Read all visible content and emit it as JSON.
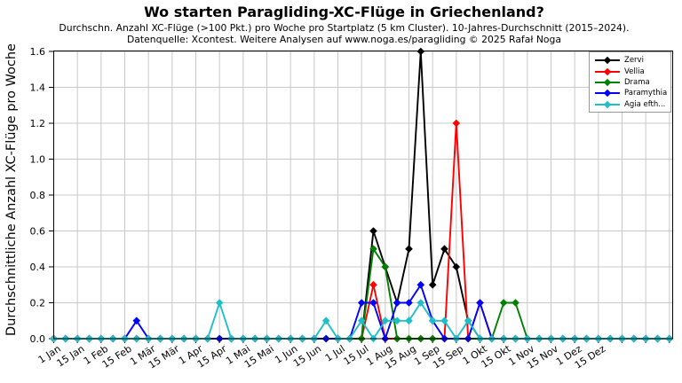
{
  "header": {
    "title": "Wo starten Paragliding-XC-Flüge in Griechenland?",
    "subtitle_line1": "Durchschn. Anzahl XC-Flüge (>100 Pkt.) pro Woche pro Startplatz (5 km Cluster). 10-Jahres-Durchschnitt (2015–2024).",
    "subtitle_line2": "Datenquelle: Xcontest. Weitere Analysen auf www.noga.es/paragliding © 2025 Rafał Noga"
  },
  "chart_data": {
    "type": "line",
    "title": "Wo starten Paragliding-XC-Flüge in Griechenland?",
    "xlabel": "",
    "ylabel": "Durchschnittliche Anzahl XC-Flüge pro Woche",
    "x_unit": "week_of_year",
    "weeks": 53,
    "ylim": [
      0,
      1.6
    ],
    "ytick_step": 0.2,
    "ytick_labels": [
      "0.0",
      "0.2",
      "0.4",
      "0.6",
      "0.8",
      "1.0",
      "1.2",
      "1.4",
      "1.6"
    ],
    "xtick_every_n_weeks": 2,
    "xtick_labels": [
      "1 Jan",
      "15 Jan",
      "1 Feb",
      "15 Feb",
      "1 Mär",
      "15 Mär",
      "1 Apr",
      "15 Apr",
      "1 Mai",
      "15 Mai",
      "1 Jun",
      "15 Jun",
      "1 Jul",
      "15 Jul",
      "1 Aug",
      "15 Aug",
      "1 Sep",
      "15 Sep",
      "1 Okt",
      "15 Okt",
      "1 Nov",
      "15 Nov",
      "1 Dez",
      "15 Dez"
    ],
    "grid": true,
    "legend_position": "top-right",
    "marker": "diamond",
    "series": [
      {
        "name": "Zervi",
        "color": "#000000",
        "values": [
          0,
          0,
          0,
          0,
          0,
          0,
          0,
          0,
          0,
          0,
          0,
          0,
          0,
          0,
          0,
          0,
          0,
          0,
          0,
          0,
          0,
          0,
          0,
          0,
          0,
          0,
          0,
          0.6,
          0.4,
          0.2,
          0.5,
          1.6,
          0.3,
          0.5,
          0.4,
          0.1,
          0,
          0,
          0,
          0,
          0,
          0,
          0,
          0,
          0,
          0,
          0,
          0,
          0,
          0,
          0,
          0,
          0
        ]
      },
      {
        "name": "Vellia",
        "color": "#ff0000",
        "values": [
          0,
          0,
          0,
          0,
          0,
          0,
          0,
          0,
          0,
          0,
          0,
          0,
          0,
          0,
          0,
          0,
          0,
          0,
          0,
          0,
          0,
          0,
          0,
          0,
          0,
          0,
          0,
          0.3,
          0,
          0,
          0,
          0,
          0,
          0,
          1.2,
          0,
          0.2,
          0,
          0,
          0,
          0,
          0,
          0,
          0,
          0,
          0,
          0,
          0,
          0,
          0,
          0,
          0,
          0
        ]
      },
      {
        "name": "Drama",
        "color": "#008000",
        "values": [
          0,
          0,
          0,
          0,
          0,
          0,
          0,
          0,
          0,
          0,
          0,
          0,
          0,
          0,
          0,
          0,
          0,
          0,
          0,
          0,
          0,
          0,
          0,
          0,
          0,
          0,
          0,
          0.5,
          0.4,
          0,
          0,
          0,
          0,
          0,
          0,
          0,
          0,
          0,
          0.2,
          0.2,
          0,
          0,
          0,
          0,
          0,
          0,
          0,
          0,
          0,
          0,
          0,
          0,
          0
        ]
      },
      {
        "name": "Paramythia",
        "color": "#0000ff",
        "values": [
          0,
          0,
          0,
          0,
          0,
          0,
          0,
          0.1,
          0,
          0,
          0,
          0,
          0,
          0,
          0,
          0,
          0,
          0,
          0,
          0,
          0,
          0,
          0,
          0,
          0,
          0,
          0.2,
          0.2,
          0,
          0.2,
          0.2,
          0.3,
          0.1,
          0,
          0,
          0,
          0.2,
          0,
          0,
          0,
          0,
          0,
          0,
          0,
          0,
          0,
          0,
          0,
          0,
          0,
          0,
          0,
          0
        ]
      },
      {
        "name": "Agia efth...",
        "color": "#1fbfc9",
        "values": [
          0,
          0,
          0,
          0,
          0,
          0,
          0,
          0,
          0,
          0,
          0,
          0,
          0,
          0,
          0.2,
          0,
          0,
          0,
          0,
          0,
          0,
          0,
          0,
          0.1,
          0,
          0,
          0.1,
          0,
          0.1,
          0.1,
          0.1,
          0.2,
          0.1,
          0.1,
          0,
          0.1,
          0,
          0,
          0,
          0,
          0,
          0,
          0,
          0,
          0,
          0,
          0,
          0,
          0,
          0,
          0,
          0,
          0
        ]
      }
    ]
  }
}
